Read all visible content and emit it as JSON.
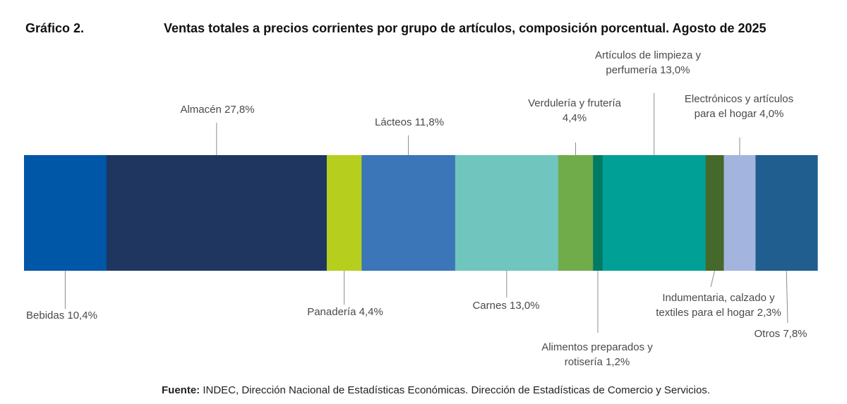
{
  "header": {
    "figure_number": "Gráfico 2.",
    "title": "Ventas totales a precios corrientes por grupo de artículos, composición porcentual. Agosto de 2025"
  },
  "chart_data": {
    "type": "bar",
    "orientation": "horizontal-stacked-100",
    "unit": "%",
    "segments": [
      {
        "name": "Bebidas",
        "value": 10.4,
        "label_lines": [
          "Bebidas 10,4%"
        ],
        "color": "#0057a8",
        "label_side": "bottom"
      },
      {
        "name": "Almacén",
        "value": 27.8,
        "label_lines": [
          "Almacén 27,8%"
        ],
        "color": "#1f3760",
        "label_side": "top"
      },
      {
        "name": "Panadería",
        "value": 4.4,
        "label_lines": [
          "Panadería 4,4%"
        ],
        "color": "#b6cf1f",
        "label_side": "bottom"
      },
      {
        "name": "Lácteos",
        "value": 11.8,
        "label_lines": [
          "Lácteos 11,8%"
        ],
        "color": "#3a76b8",
        "label_side": "top"
      },
      {
        "name": "Carnes",
        "value": 13.0,
        "label_lines": [
          "Carnes 13,0%"
        ],
        "color": "#70c5bf",
        "label_side": "bottom"
      },
      {
        "name": "Verdulería y frutería",
        "value": 4.4,
        "label_lines": [
          "Verdulería y frutería",
          "4,4%"
        ],
        "color": "#70ac4a",
        "label_side": "top"
      },
      {
        "name": "Alimentos preparados y rotisería",
        "value": 1.2,
        "label_lines": [
          "Alimentos preparados y",
          "rotisería 1,2%"
        ],
        "color": "#007a64",
        "label_side": "bottom"
      },
      {
        "name": "Artículos de limpieza y perfumería",
        "value": 13.0,
        "label_lines": [
          "Artículos de limpieza y",
          "perfumería 13,0%"
        ],
        "color": "#00a096",
        "label_side": "top"
      },
      {
        "name": "Indumentaria, calzado y textiles para el hogar",
        "value": 2.3,
        "label_lines": [
          "Indumentaria, calzado y",
          "textiles para el hogar 2,3%"
        ],
        "color": "#45682b",
        "label_side": "bottom"
      },
      {
        "name": "Electrónicos y artículos para el hogar",
        "value": 4.0,
        "label_lines": [
          "Electrónicos y artículos",
          "para el hogar 4,0%"
        ],
        "color": "#a3b4df",
        "label_side": "top"
      },
      {
        "name": "Otros",
        "value": 7.8,
        "label_lines": [
          "Otros 7,8%"
        ],
        "color": "#215e90",
        "label_side": "bottom"
      }
    ]
  },
  "source": {
    "label": "Fuente:",
    "text": " INDEC, Dirección Nacional de Estadísticas Económicas. Dirección de Estadísticas de Comercio y Servicios."
  }
}
